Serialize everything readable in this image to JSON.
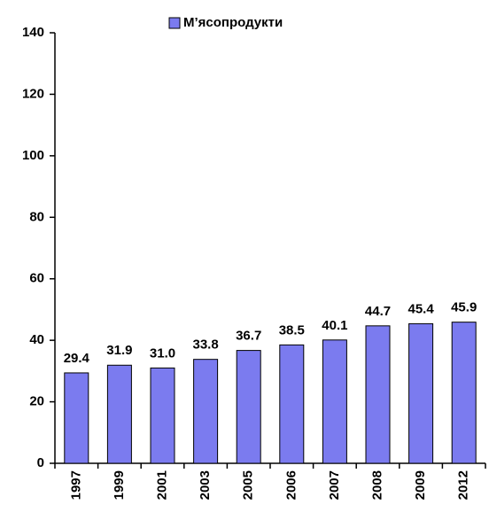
{
  "chart_data": {
    "type": "bar",
    "categories": [
      "1997",
      "1999",
      "2001",
      "2003",
      "2005",
      "2006",
      "2007",
      "2008",
      "2009",
      "2012"
    ],
    "series": [
      {
        "name": "М’ясопродукти",
        "color": "#7b7bef",
        "values": [
          29.4,
          31.9,
          31.0,
          33.8,
          36.7,
          38.5,
          40.1,
          44.7,
          45.4,
          45.9
        ],
        "value_labels": [
          "29.4",
          "31.9",
          "31.0",
          "33.8",
          "36.7",
          "38.5",
          "40.1",
          "44.7",
          "45.4",
          "45.9"
        ]
      }
    ],
    "ylim": [
      0,
      140
    ],
    "yticks": [
      0,
      20,
      40,
      60,
      80,
      100,
      120,
      140
    ],
    "legend": "top",
    "grid": false
  }
}
